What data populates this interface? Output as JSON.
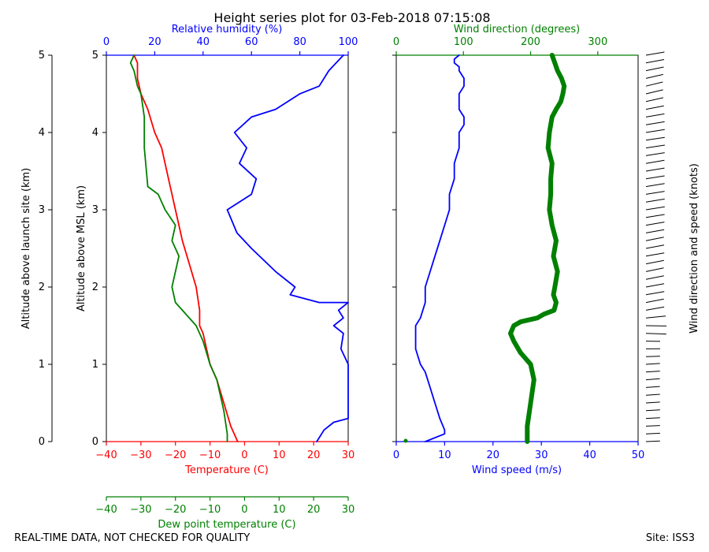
{
  "chart_data": {
    "type": "line",
    "title": "Height series plot for 03-Feb-2018 07:15:08",
    "footer_left": "REAL-TIME DATA, NOT CHECKED FOR QUALITY",
    "footer_right": "Site: ISS3",
    "colors": {
      "temperature": "#ff0000",
      "dewpoint": "#008000",
      "rh": "#0000ff",
      "wspd": "#0000ff",
      "wdir": "#008000",
      "barbs": "#000000"
    },
    "left_panel": {
      "ylabel_site": "Altitude above launch site (km)",
      "ylabel_msl": "Altitude above MSL (km)",
      "ylim": [
        0,
        5
      ],
      "yticks": [
        "0",
        "1",
        "2",
        "3",
        "4",
        "5"
      ],
      "temperature_axis": {
        "label": "Temperature (C)",
        "range": [
          -40,
          30
        ],
        "ticks": [
          "−40",
          "−30",
          "−20",
          "−10",
          "0",
          "10",
          "20",
          "30"
        ]
      },
      "dewpoint_axis": {
        "label": "Dew point temperature (C)",
        "range": [
          -40,
          30
        ],
        "ticks": [
          "−40",
          "−30",
          "−20",
          "−10",
          "0",
          "10",
          "20",
          "30"
        ]
      },
      "rh_axis": {
        "label": "Relative humidity (%)",
        "range": [
          0,
          100
        ],
        "ticks": [
          "0",
          "20",
          "40",
          "60",
          "80",
          "100"
        ]
      },
      "series": [
        {
          "name": "Temperature",
          "key": "temperature",
          "x_range": [
            -40,
            30
          ],
          "x": [
            -2,
            -4,
            -6,
            -8,
            -10,
            -11,
            -12,
            -13,
            -13,
            -14,
            -16,
            -18,
            -20,
            -22,
            -24,
            -26,
            -28,
            -30,
            -31,
            -31,
            -32
          ],
          "y": [
            0,
            0.2,
            0.5,
            0.8,
            1.0,
            1.2,
            1.4,
            1.5,
            1.7,
            2.0,
            2.3,
            2.6,
            3.0,
            3.4,
            3.8,
            4.0,
            4.3,
            4.5,
            4.7,
            4.9,
            5.0
          ]
        },
        {
          "name": "Dew point",
          "key": "dewpoint",
          "x_range": [
            -40,
            30
          ],
          "x": [
            -5,
            -5,
            -6,
            -8,
            -10,
            -12,
            -14,
            -18,
            -20,
            -21,
            -20,
            -19,
            -21,
            -20,
            -23,
            -25,
            -28,
            -29,
            -29,
            -30,
            -31,
            -32,
            -33,
            -32
          ],
          "y": [
            0,
            0.1,
            0.4,
            0.8,
            1.0,
            1.3,
            1.5,
            1.7,
            1.8,
            2.0,
            2.2,
            2.4,
            2.6,
            2.8,
            3.0,
            3.2,
            3.3,
            3.8,
            4.2,
            4.5,
            4.6,
            4.8,
            4.9,
            5.0
          ]
        },
        {
          "name": "Relative humidity",
          "key": "rh",
          "x_range": [
            0,
            100
          ],
          "x": [
            87,
            90,
            94,
            100,
            100,
            97,
            98,
            94,
            98,
            96,
            100,
            88,
            76,
            78,
            70,
            60,
            54,
            50,
            60,
            62,
            55,
            58,
            53,
            60,
            70,
            80,
            88,
            92,
            98
          ],
          "y": [
            0,
            0.15,
            0.25,
            0.3,
            1.0,
            1.2,
            1.4,
            1.5,
            1.6,
            1.7,
            1.8,
            1.8,
            1.9,
            2.0,
            2.2,
            2.5,
            2.7,
            3.0,
            3.2,
            3.4,
            3.6,
            3.8,
            4.0,
            4.2,
            4.3,
            4.5,
            4.6,
            4.8,
            5.0
          ]
        }
      ]
    },
    "right_panel": {
      "ylim": [
        0,
        5
      ],
      "wind_speed_axis": {
        "label": "Wind speed (m/s)",
        "range": [
          0,
          50
        ],
        "ticks": [
          "0",
          "10",
          "20",
          "30",
          "40",
          "50"
        ]
      },
      "wind_dir_axis": {
        "label": "Wind direction (degrees)",
        "range": [
          0,
          360
        ],
        "ticks": [
          "0",
          "100",
          "200",
          "300"
        ]
      },
      "barb_label": "Wind direction and speed (knots)",
      "series": [
        {
          "name": "Wind speed",
          "key": "wspd",
          "x_range": [
            0,
            50
          ],
          "x": [
            6,
            10,
            10,
            9,
            8,
            7,
            6,
            5,
            4,
            4,
            4,
            5,
            6,
            6,
            7,
            8,
            9,
            10,
            11,
            11,
            12,
            12,
            13,
            13,
            14,
            14,
            13,
            13,
            13,
            14,
            14,
            13,
            13,
            12,
            12,
            13
          ],
          "y": [
            0,
            0.1,
            0.15,
            0.3,
            0.5,
            0.7,
            0.9,
            1.0,
            1.2,
            1.4,
            1.5,
            1.6,
            1.8,
            2.0,
            2.2,
            2.4,
            2.6,
            2.8,
            3.0,
            3.2,
            3.4,
            3.6,
            3.8,
            4.0,
            4.1,
            4.2,
            4.3,
            4.4,
            4.5,
            4.6,
            4.7,
            4.8,
            4.85,
            4.9,
            4.95,
            5.0
          ]
        },
        {
          "name": "Wind direction",
          "key": "wdir",
          "x_range": [
            0,
            360
          ],
          "x": [
            195,
            195,
            200,
            205,
            200,
            185,
            175,
            170,
            175,
            185,
            210,
            220,
            235,
            238,
            234,
            236,
            240,
            234,
            238,
            232,
            228,
            230,
            230,
            232,
            226,
            228,
            230,
            232,
            238,
            245,
            248,
            250,
            246,
            240,
            236,
            232
          ],
          "y": [
            0,
            0.2,
            0.5,
            0.8,
            1.0,
            1.15,
            1.3,
            1.4,
            1.5,
            1.55,
            1.6,
            1.65,
            1.7,
            1.8,
            1.9,
            2.0,
            2.2,
            2.4,
            2.6,
            2.8,
            3.0,
            3.2,
            3.4,
            3.6,
            3.8,
            4.0,
            4.1,
            4.2,
            4.3,
            4.4,
            4.5,
            4.6,
            4.7,
            4.8,
            4.9,
            5.0
          ]
        }
      ]
    }
  }
}
